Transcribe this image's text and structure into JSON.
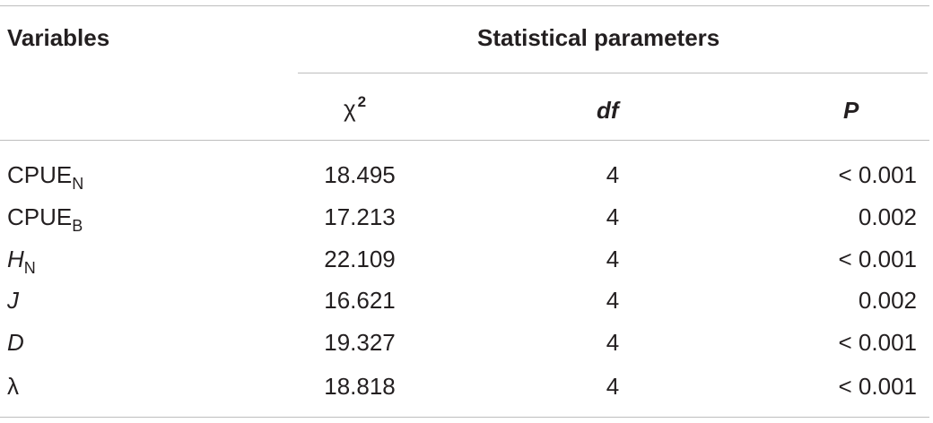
{
  "table": {
    "header": {
      "variables": "Variables",
      "stat_params": "Statistical parameters",
      "chi_symbol": "χ",
      "chi_sup": "2",
      "df": "df",
      "p": "P"
    },
    "rows": [
      {
        "label": "CPUE",
        "sub": "N",
        "chi2": "18.495",
        "df": "4",
        "p": "< 0.001"
      },
      {
        "label": "CPUE",
        "sub": "B",
        "chi2": "17.213",
        "df": "4",
        "p": "0.002"
      },
      {
        "label": "H",
        "sub": "N",
        "chi2": "22.109",
        "df": "4",
        "p": "< 0.001"
      },
      {
        "label": "J",
        "sub": "",
        "chi2": "16.621",
        "df": "4",
        "p": "0.002"
      },
      {
        "label": "D",
        "sub": "",
        "chi2": "19.327",
        "df": "4",
        "p": "< 0.001"
      },
      {
        "label": "λ",
        "sub": "",
        "chi2": "18.818",
        "df": "4",
        "p": "< 0.001"
      }
    ]
  }
}
